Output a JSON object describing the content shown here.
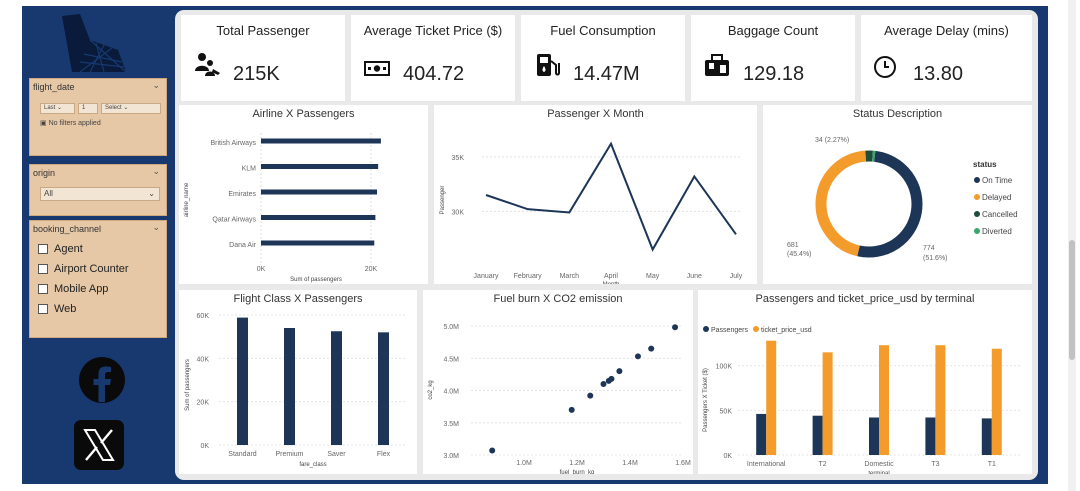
{
  "colors": {
    "navy": "#17396f",
    "orange": "#f39c2c",
    "dark": "#1d3557",
    "green": "#3aa66e",
    "slicer": "#e6c8a6"
  },
  "slicers": {
    "flight_date": {
      "title": "flight_date",
      "mode": "Last",
      "count": "1",
      "select": "Select",
      "status": "No filters applied"
    },
    "origin": {
      "title": "origin",
      "value": "All"
    },
    "booking_channel": {
      "title": "booking_channel",
      "options": [
        "Agent",
        "Airport Counter",
        "Mobile App",
        "Web"
      ]
    }
  },
  "kpis": [
    {
      "title": "Total Passenger",
      "value": "215K",
      "icon": "passenger-icon"
    },
    {
      "title": "Average Ticket Price ($)",
      "value": "404.72",
      "icon": "money-icon"
    },
    {
      "title": "Fuel Consumption",
      "value": "14.47M",
      "icon": "fuel-pump-icon"
    },
    {
      "title": "Baggage Count",
      "value": "129.18",
      "icon": "luggage-icon"
    },
    {
      "title": "Average Delay (mins)",
      "value": "13.80",
      "icon": "clock-icon"
    }
  ],
  "chart_data": [
    {
      "id": "airline",
      "type": "bar",
      "title": "Airline X Passengers",
      "orientation": "horizontal",
      "categories": [
        "British Airways",
        "KLM",
        "Emirates",
        "Qatar Airways",
        "Dana Air"
      ],
      "values": [
        21800,
        21300,
        21100,
        20800,
        20600
      ],
      "xlabel": "Sum of passengers",
      "ylabel": "airline_name",
      "xlim": [
        0,
        20000
      ],
      "xticks": [
        "0K",
        "20K"
      ]
    },
    {
      "id": "month",
      "type": "line",
      "title": "Passenger X Month",
      "categories": [
        "January",
        "February",
        "March",
        "April",
        "May",
        "June",
        "July"
      ],
      "values": [
        31500,
        30200,
        29900,
        36200,
        26500,
        33200,
        27900
      ],
      "xlabel": "Month",
      "ylabel": "Passenger",
      "ylim": [
        26000,
        37000
      ],
      "yticks": [
        "30K",
        "35K"
      ]
    },
    {
      "id": "status",
      "type": "pie",
      "title": "Status Description",
      "legend_title": "status",
      "slices": [
        {
          "label": "On Time",
          "value": 774,
          "color": "#1d3557"
        },
        {
          "label": "Delayed",
          "value": 681,
          "color": "#f39c2c"
        },
        {
          "label": "Cancelled",
          "value": 34,
          "color": "#1f4d3a"
        },
        {
          "label": "Diverted",
          "value": 11,
          "color": "#3aa66e"
        }
      ],
      "labels": {
        "top": "34 (2.27%)",
        "left_value": "681",
        "left_pct": "(45.4%)",
        "right_value": "774",
        "right_pct": "(51.6%)"
      }
    },
    {
      "id": "fareclass",
      "type": "bar",
      "title": "Flight Class X Passengers",
      "categories": [
        "Standard",
        "Premium",
        "Saver",
        "Flex"
      ],
      "values": [
        58800,
        54000,
        52500,
        52000
      ],
      "xlabel": "fare_class",
      "ylabel": "Sum of passengers",
      "ylim": [
        0,
        60000
      ],
      "yticks": [
        "0K",
        "20K",
        "40K",
        "60K"
      ]
    },
    {
      "id": "fuel",
      "type": "scatter",
      "title": "Fuel burn X CO2 emission",
      "x": [
        0.88,
        1.18,
        1.25,
        1.3,
        1.32,
        1.33,
        1.36,
        1.43,
        1.48,
        1.57
      ],
      "y": [
        3.07,
        3.7,
        3.92,
        4.1,
        4.15,
        4.18,
        4.3,
        4.53,
        4.65,
        4.98
      ],
      "xlabel": "fuel_burn_kg",
      "ylabel": "co2_kg",
      "xlim": [
        0.8,
        1.6
      ],
      "ylim": [
        3.0,
        5.0
      ],
      "xticks": [
        "1.0M",
        "1.2M",
        "1.4M",
        "1.6M"
      ],
      "yticks": [
        "3.0M",
        "3.5M",
        "4.0M",
        "4.5M",
        "5.0M"
      ]
    },
    {
      "id": "terminal",
      "type": "bar",
      "title": "Passengers and ticket_price_usd by terminal",
      "categories": [
        "International",
        "T2",
        "Domestic",
        "T3",
        "T1"
      ],
      "series": [
        {
          "name": "Passengers",
          "values": [
            46000,
            44000,
            42000,
            42000,
            41000
          ],
          "color": "#1d3557"
        },
        {
          "name": "ticket_price_usd",
          "values": [
            128000,
            115000,
            123000,
            123000,
            119000
          ],
          "color": "#f39c2c"
        }
      ],
      "xlabel": "terminal",
      "ylabel": "Passengers X Ticket ($)",
      "ylim": [
        0,
        140000
      ],
      "yticks": [
        "0K",
        "50K",
        "100K"
      ]
    }
  ]
}
